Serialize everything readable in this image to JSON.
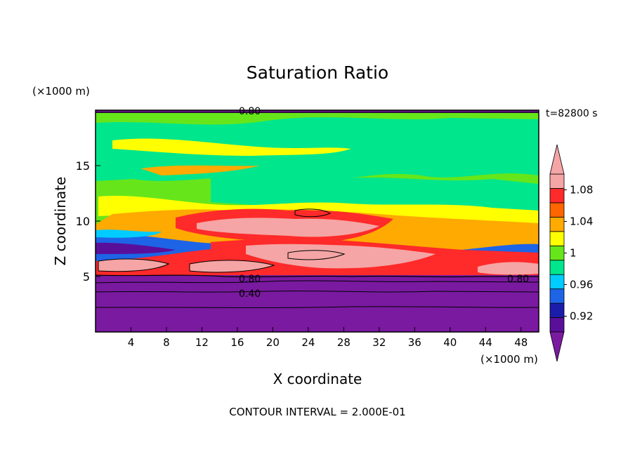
{
  "chart_data": {
    "type": "heatmap",
    "title": "Saturation Ratio",
    "xlabel": "X coordinate",
    "ylabel": "Z coordinate",
    "x_unit": "(×1000 m)",
    "y_unit": "(×1000 m)",
    "time_label": "t=82800 s",
    "footer": "CONTOUR INTERVAL = 2.000E-01",
    "xlim": [
      0,
      50
    ],
    "ylim": [
      0,
      20
    ],
    "x_ticks": [
      4,
      8,
      12,
      16,
      20,
      24,
      28,
      32,
      36,
      40,
      44,
      48
    ],
    "y_ticks": [
      5,
      10,
      15
    ],
    "contour_labels": [
      {
        "text": "0.80",
        "x": 17.2,
        "z": 19.7
      },
      {
        "text": "0.80",
        "x": 17.2,
        "z": 4.9
      },
      {
        "text": "0.40",
        "x": 17.2,
        "z": 3.5
      },
      {
        "text": "0.80",
        "x": 47.2,
        "z": 4.9
      }
    ],
    "colorbar": {
      "labels": [
        "1.08",
        "1.04",
        "1",
        "0.96",
        "0.92"
      ],
      "levels": [
        0.9,
        0.92,
        0.94,
        0.96,
        0.98,
        1.0,
        1.02,
        1.04,
        1.06,
        1.08,
        1.1
      ],
      "colors": [
        "#5a0f9a",
        "#1c1caa",
        "#1e64e6",
        "#00ccff",
        "#00e68c",
        "#66e61a",
        "#ffff00",
        "#ffaa00",
        "#ff6600",
        "#ff2a2a",
        "#f5a5a5"
      ],
      "under_color": "#7a1aa0",
      "over_color": "#f5a5a5"
    },
    "field_bands": [
      {
        "z": [
          0,
          5
        ],
        "value": "<0.90",
        "color": "#7a1aa0"
      },
      {
        "z": [
          5,
          8
        ],
        "value": "0.90-1.10+",
        "color": "mixed"
      },
      {
        "z": [
          8,
          11
        ],
        "value": "0.98-1.10",
        "color": "mixed"
      },
      {
        "z": [
          11,
          20
        ],
        "value": "0.98-1.04",
        "color": "mixed"
      },
      {
        "z": [
          19.7,
          20
        ],
        "value": "<0.80",
        "color": "#7a1aa0"
      }
    ]
  }
}
